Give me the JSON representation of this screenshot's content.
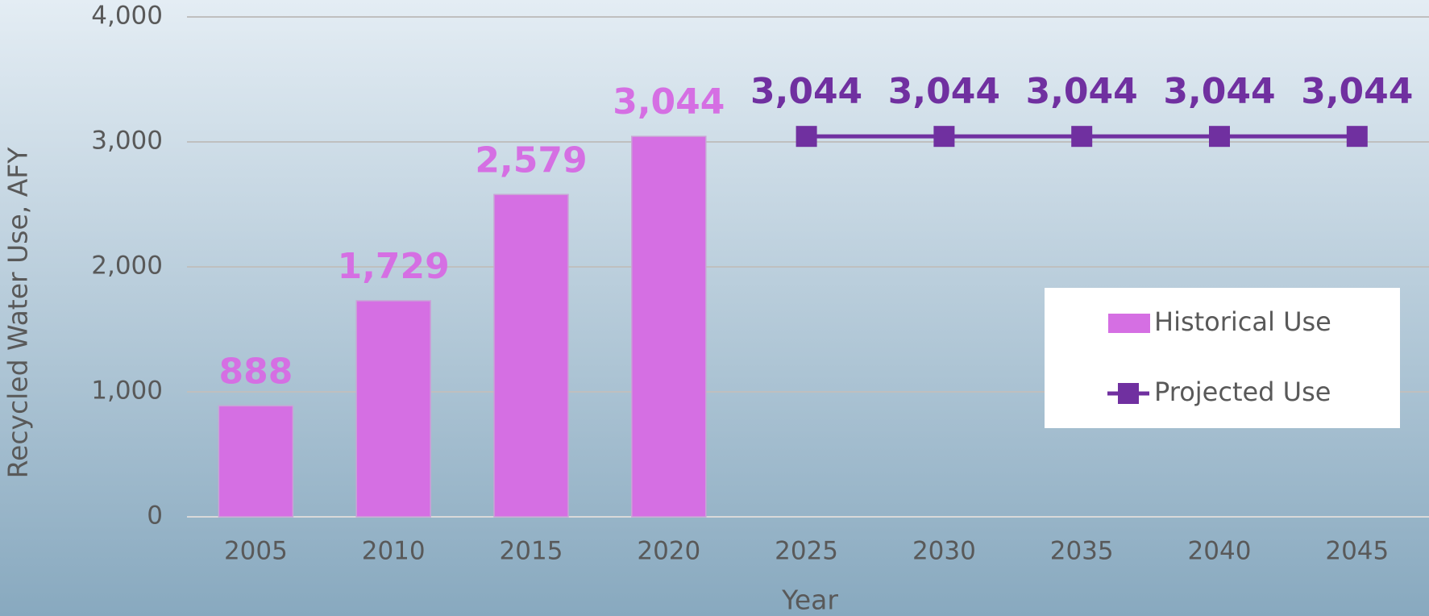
{
  "chart_data": {
    "type": "bar",
    "x_label": "Year",
    "y_label": "Recycled Water Use, AFY",
    "categories": [
      "2005",
      "2010",
      "2015",
      "2020",
      "2025",
      "2030",
      "2035",
      "2040",
      "2045"
    ],
    "series": [
      {
        "name": "Historical Use",
        "type": "bar",
        "color": "#d56fe3",
        "values": [
          888,
          1729,
          2579,
          3044,
          null,
          null,
          null,
          null,
          null
        ],
        "value_labels": [
          "888",
          "1,729",
          "2,579",
          "3,044",
          null,
          null,
          null,
          null,
          null
        ]
      },
      {
        "name": "Projected Use",
        "type": "line",
        "color": "#7030a0",
        "values": [
          null,
          null,
          null,
          null,
          3044,
          3044,
          3044,
          3044,
          3044
        ],
        "value_labels": [
          null,
          null,
          null,
          null,
          "3,044",
          "3,044",
          "3,044",
          "3,044",
          "3,044"
        ]
      }
    ],
    "ylim": [
      0,
      4000
    ],
    "yticks": [
      0,
      {
        "value": 1000,
        "label": "1,000"
      },
      {
        "value": 2000,
        "label": "2,000"
      },
      {
        "value": 3000,
        "label": "3,000"
      },
      {
        "value": 4000,
        "label": "4,000"
      }
    ],
    "grid": true,
    "legend": "right"
  }
}
